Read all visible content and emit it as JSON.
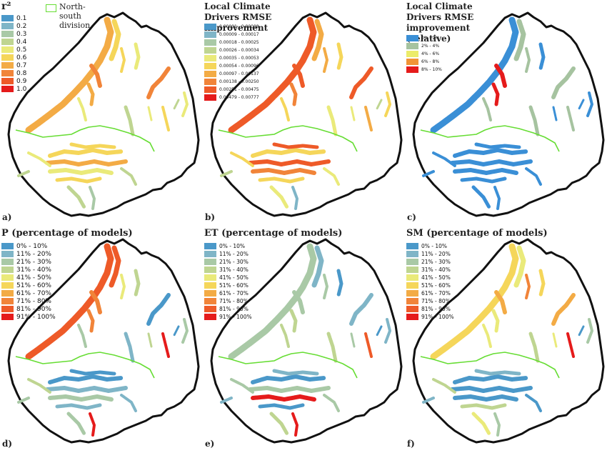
{
  "colors": {
    "outline": "#111111",
    "division_line": "#66dd33",
    "ten_class_ramp": [
      "#4a98c9",
      "#7fb5c7",
      "#a9c9a6",
      "#bfd591",
      "#eaea7a",
      "#f5d65a",
      "#f3ab45",
      "#f18439",
      "#ee5a28",
      "#e51b1b"
    ],
    "five_class_ramp": [
      "#3a8fd6",
      "#a6c3a0",
      "#ecec69",
      "#f19436",
      "#e51b1b"
    ]
  },
  "panels": [
    {
      "id": "a",
      "label": "a)",
      "title": "r²",
      "division_label": "North-south division",
      "legend": [
        "0.1",
        "0.2",
        "0.3",
        "0.4",
        "0.5",
        "0.6",
        "0.7",
        "0.8",
        "0.9",
        "1.0"
      ]
    },
    {
      "id": "b",
      "label": "b)",
      "title": "Local Climate Drivers RMSE improvement",
      "legend": [
        "0.00001 - 0.00008",
        "0.00009 - 0.00017",
        "0.00018 - 0.00025",
        "0.00026 - 0.00034",
        "0.00035 - 0.00053",
        "0.00054 - 0.00096",
        "0.00097 - 0.00137",
        "0.00138 - 0.00250",
        "0.00251 - 0.00475",
        "0.00479 - 0.00777"
      ]
    },
    {
      "id": "c",
      "label": "c)",
      "title": "Local Climate Drivers RMSE improvement (relative)",
      "legend": [
        "0% - 2%",
        "2% - 4%",
        "4% - 6%",
        "6% - 8%",
        "8% - 10%"
      ]
    },
    {
      "id": "d",
      "label": "d)",
      "title": "P (percentage of models)",
      "legend": [
        "0% - 10%",
        "11% - 20%",
        "21% - 30%",
        "31% - 40%",
        "41% - 50%",
        "51% - 60%",
        "61% - 70%",
        "71% - 80%",
        "81% - 90%",
        "91% - 100%"
      ]
    },
    {
      "id": "e",
      "label": "e)",
      "title": "ET (percentage of models)",
      "legend": [
        "0% - 10%",
        "11% - 20%",
        "21% - 30%",
        "31% - 40%",
        "41% - 50%",
        "51% - 60%",
        "61% - 70%",
        "71% - 80%",
        "81% - 90%",
        "91% - 100%"
      ]
    },
    {
      "id": "f",
      "label": "f)",
      "title": "SM (percentage of models)",
      "legend": [
        "0% - 10%",
        "11% - 20%",
        "21% - 30%",
        "31% - 40%",
        "41% - 50%",
        "51% - 60%",
        "61% - 70%",
        "71% - 80%",
        "81% - 90%",
        "91% - 100%"
      ]
    }
  ]
}
